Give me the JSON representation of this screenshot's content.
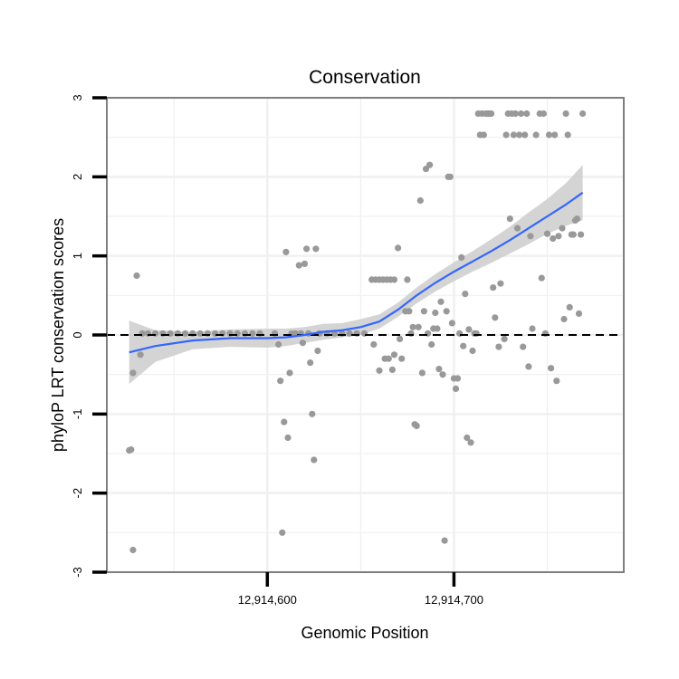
{
  "chart_data": {
    "type": "scatter",
    "title": "Conservation",
    "xlabel": "Genomic Position",
    "ylabel": "phyloP LRT conservation scores",
    "xlim": [
      12914514,
      12914791
    ],
    "ylim": [
      -3,
      3
    ],
    "x_ticks": [
      {
        "value": 12914600,
        "label": "12,914,600"
      },
      {
        "value": 12914700,
        "label": "12,914,700"
      }
    ],
    "x_minor_gridlines": [
      12914550,
      12914650,
      12914750
    ],
    "y_ticks": [
      {
        "value": -3,
        "label": "-3"
      },
      {
        "value": -2,
        "label": "-2"
      },
      {
        "value": -1,
        "label": "-1"
      },
      {
        "value": 0,
        "label": "0"
      },
      {
        "value": 1,
        "label": "1"
      },
      {
        "value": 2,
        "label": "2"
      },
      {
        "value": 3,
        "label": "3"
      }
    ],
    "reference_line": {
      "y": 0,
      "style": "dashed",
      "color": "#000000"
    },
    "colors": {
      "points": "#999999",
      "smooth_line": "#3366FF",
      "confidence_band": "#CCCCCC",
      "panel_border": "#7F7F7F",
      "grid": "#F0F0F0"
    },
    "grid": true,
    "points": [
      [
        12914526,
        -1.46
      ],
      [
        12914527,
        -1.45
      ],
      [
        12914528,
        -2.72
      ],
      [
        12914528,
        -0.48
      ],
      [
        12914530,
        0.75
      ],
      [
        12914532,
        -0.25
      ],
      [
        12914533,
        0.02
      ],
      [
        12914536,
        0.02
      ],
      [
        12914540,
        0.02
      ],
      [
        12914544,
        0.02
      ],
      [
        12914548,
        0.02
      ],
      [
        12914552,
        0.02
      ],
      [
        12914556,
        0.02
      ],
      [
        12914560,
        0.02
      ],
      [
        12914564,
        0.02
      ],
      [
        12914568,
        0.02
      ],
      [
        12914572,
        0.02
      ],
      [
        12914576,
        0.02
      ],
      [
        12914580,
        0.02
      ],
      [
        12914584,
        0.02
      ],
      [
        12914588,
        0.02
      ],
      [
        12914592,
        0.02
      ],
      [
        12914596,
        0.02
      ],
      [
        12914604,
        0.02
      ],
      [
        12914606,
        -0.12
      ],
      [
        12914607,
        -0.58
      ],
      [
        12914608,
        -2.5
      ],
      [
        12914609,
        -1.1
      ],
      [
        12914610,
        1.05
      ],
      [
        12914611,
        -1.3
      ],
      [
        12914612,
        -0.48
      ],
      [
        12914613,
        0.02
      ],
      [
        12914615,
        0.02
      ],
      [
        12914617,
        0.88
      ],
      [
        12914618,
        0.02
      ],
      [
        12914619,
        -0.1
      ],
      [
        12914620,
        0.9
      ],
      [
        12914621,
        1.09
      ],
      [
        12914622,
        0.02
      ],
      [
        12914623,
        -0.35
      ],
      [
        12914624,
        -1.0
      ],
      [
        12914625,
        -1.58
      ],
      [
        12914626,
        1.09
      ],
      [
        12914627,
        -0.2
      ],
      [
        12914628,
        0.02
      ],
      [
        12914632,
        0.02
      ],
      [
        12914636,
        0.02
      ],
      [
        12914640,
        0.02
      ],
      [
        12914644,
        0.02
      ],
      [
        12914648,
        0.02
      ],
      [
        12914652,
        0.02
      ],
      [
        12914656,
        0.7
      ],
      [
        12914658,
        0.7
      ],
      [
        12914660,
        0.7
      ],
      [
        12914662,
        0.7
      ],
      [
        12914664,
        0.7
      ],
      [
        12914666,
        0.7
      ],
      [
        12914668,
        0.7
      ],
      [
        12914657,
        -0.12
      ],
      [
        12914660,
        -0.45
      ],
      [
        12914663,
        -0.3
      ],
      [
        12914665,
        -0.3
      ],
      [
        12914667,
        -0.44
      ],
      [
        12914668,
        -0.25
      ],
      [
        12914670,
        1.1
      ],
      [
        12914671,
        -0.05
      ],
      [
        12914672,
        -0.3
      ],
      [
        12914674,
        0.3
      ],
      [
        12914675,
        0.7
      ],
      [
        12914676,
        0.3
      ],
      [
        12914677,
        0.02
      ],
      [
        12914678,
        0.1
      ],
      [
        12914679,
        -1.13
      ],
      [
        12914680,
        -1.15
      ],
      [
        12914681,
        0.1
      ],
      [
        12914682,
        1.7
      ],
      [
        12914683,
        -0.48
      ],
      [
        12914684,
        0.3
      ],
      [
        12914685,
        2.1
      ],
      [
        12914686,
        0.02
      ],
      [
        12914687,
        2.15
      ],
      [
        12914688,
        -0.12
      ],
      [
        12914689,
        0.08
      ],
      [
        12914690,
        0.28
      ],
      [
        12914691,
        0.08
      ],
      [
        12914692,
        -0.43
      ],
      [
        12914693,
        0.42
      ],
      [
        12914694,
        -0.5
      ],
      [
        12914695,
        -2.6
      ],
      [
        12914696,
        0.3
      ],
      [
        12914697,
        2.0
      ],
      [
        12914698,
        2.0
      ],
      [
        12914699,
        0.15
      ],
      [
        12914700,
        -0.55
      ],
      [
        12914701,
        -0.68
      ],
      [
        12914702,
        -0.55
      ],
      [
        12914703,
        0.02
      ],
      [
        12914704,
        0.98
      ],
      [
        12914705,
        -0.14
      ],
      [
        12914706,
        0.52
      ],
      [
        12914707,
        -1.3
      ],
      [
        12914708,
        0.07
      ],
      [
        12914709,
        -1.36
      ],
      [
        12914710,
        -0.2
      ],
      [
        12914711,
        0.02
      ],
      [
        12914712,
        0.02
      ],
      [
        12914713,
        2.8
      ],
      [
        12914714,
        2.53
      ],
      [
        12914715,
        2.8
      ],
      [
        12914716,
        2.53
      ],
      [
        12914717,
        2.8
      ],
      [
        12914718,
        2.8
      ],
      [
        12914719,
        2.8
      ],
      [
        12914720,
        2.8
      ],
      [
        12914721,
        0.6
      ],
      [
        12914722,
        0.22
      ],
      [
        12914724,
        -0.15
      ],
      [
        12914725,
        0.65
      ],
      [
        12914727,
        -0.05
      ],
      [
        12914728,
        2.53
      ],
      [
        12914729,
        2.8
      ],
      [
        12914730,
        1.47
      ],
      [
        12914731,
        2.8
      ],
      [
        12914732,
        2.53
      ],
      [
        12914733,
        2.8
      ],
      [
        12914734,
        1.35
      ],
      [
        12914735,
        2.53
      ],
      [
        12914736,
        2.8
      ],
      [
        12914737,
        -0.15
      ],
      [
        12914738,
        2.53
      ],
      [
        12914739,
        2.8
      ],
      [
        12914740,
        -0.4
      ],
      [
        12914741,
        1.25
      ],
      [
        12914742,
        0.08
      ],
      [
        12914744,
        2.53
      ],
      [
        12914746,
        2.8
      ],
      [
        12914747,
        0.72
      ],
      [
        12914748,
        2.8
      ],
      [
        12914749,
        0.02
      ],
      [
        12914750,
        1.28
      ],
      [
        12914751,
        2.53
      ],
      [
        12914752,
        -0.42
      ],
      [
        12914753,
        1.22
      ],
      [
        12914754,
        2.53
      ],
      [
        12914755,
        -0.58
      ],
      [
        12914756,
        1.25
      ],
      [
        12914758,
        1.35
      ],
      [
        12914759,
        0.2
      ],
      [
        12914760,
        2.8
      ],
      [
        12914761,
        2.53
      ],
      [
        12914762,
        0.35
      ],
      [
        12914763,
        1.27
      ],
      [
        12914764,
        1.27
      ],
      [
        12914765,
        1.45
      ],
      [
        12914766,
        1.47
      ],
      [
        12914767,
        0.27
      ],
      [
        12914768,
        1.27
      ],
      [
        12914769,
        2.8
      ]
    ],
    "smooth": [
      [
        12914526,
        -0.22
      ],
      [
        12914540,
        -0.14
      ],
      [
        12914560,
        -0.07
      ],
      [
        12914580,
        -0.04
      ],
      [
        12914600,
        -0.04
      ],
      [
        12914610,
        -0.03
      ],
      [
        12914620,
        0.0
      ],
      [
        12914630,
        0.04
      ],
      [
        12914640,
        0.06
      ],
      [
        12914650,
        0.1
      ],
      [
        12914660,
        0.17
      ],
      [
        12914670,
        0.32
      ],
      [
        12914680,
        0.5
      ],
      [
        12914690,
        0.66
      ],
      [
        12914700,
        0.8
      ],
      [
        12914710,
        0.93
      ],
      [
        12914720,
        1.06
      ],
      [
        12914730,
        1.2
      ],
      [
        12914740,
        1.35
      ],
      [
        12914750,
        1.5
      ],
      [
        12914760,
        1.65
      ],
      [
        12914769,
        1.8
      ]
    ],
    "band_lower": [
      [
        12914526,
        -0.62
      ],
      [
        12914540,
        -0.34
      ],
      [
        12914560,
        -0.18
      ],
      [
        12914580,
        -0.15
      ],
      [
        12914600,
        -0.16
      ],
      [
        12914610,
        -0.14
      ],
      [
        12914620,
        -0.1
      ],
      [
        12914630,
        -0.06
      ],
      [
        12914640,
        -0.03
      ],
      [
        12914650,
        0.0
      ],
      [
        12914660,
        0.08
      ],
      [
        12914670,
        0.23
      ],
      [
        12914680,
        0.4
      ],
      [
        12914690,
        0.55
      ],
      [
        12914700,
        0.68
      ],
      [
        12914710,
        0.8
      ],
      [
        12914720,
        0.91
      ],
      [
        12914730,
        1.03
      ],
      [
        12914740,
        1.15
      ],
      [
        12914750,
        1.28
      ],
      [
        12914760,
        1.38
      ],
      [
        12914769,
        1.45
      ]
    ],
    "band_upper": [
      [
        12914526,
        0.18
      ],
      [
        12914540,
        0.06
      ],
      [
        12914560,
        0.04
      ],
      [
        12914580,
        0.07
      ],
      [
        12914600,
        0.08
      ],
      [
        12914610,
        0.08
      ],
      [
        12914620,
        0.1
      ],
      [
        12914630,
        0.14
      ],
      [
        12914640,
        0.15
      ],
      [
        12914650,
        0.2
      ],
      [
        12914660,
        0.26
      ],
      [
        12914670,
        0.41
      ],
      [
        12914680,
        0.6
      ],
      [
        12914690,
        0.77
      ],
      [
        12914700,
        0.92
      ],
      [
        12914710,
        1.06
      ],
      [
        12914720,
        1.21
      ],
      [
        12914730,
        1.37
      ],
      [
        12914740,
        1.55
      ],
      [
        12914750,
        1.72
      ],
      [
        12914760,
        1.92
      ],
      [
        12914769,
        2.15
      ]
    ]
  }
}
